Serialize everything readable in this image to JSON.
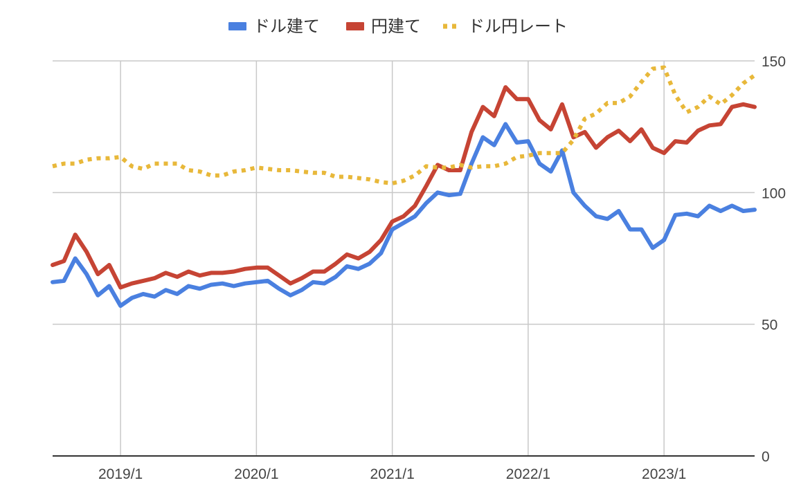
{
  "chart_data": {
    "type": "line",
    "title": "",
    "xlabel": "",
    "ylabel": "",
    "ylim": [
      0,
      150
    ],
    "y_axis_side": "right",
    "y_ticks": [
      "0",
      "50",
      "100",
      "150"
    ],
    "x_ticks": [
      {
        "label": "2019/1",
        "x": "2019-01"
      },
      {
        "label": "2020/1",
        "x": "2020-01"
      },
      {
        "label": "2021/1",
        "x": "2021-01"
      },
      {
        "label": "2022/1",
        "x": "2022-01"
      },
      {
        "label": "2023/1",
        "x": "2023-01"
      }
    ],
    "x_range": [
      "2018-07",
      "2023-09"
    ],
    "grid": true,
    "legend_position": "top",
    "x": [
      "2018-07",
      "2018-08",
      "2018-09",
      "2018-10",
      "2018-11",
      "2018-12",
      "2019-01",
      "2019-02",
      "2019-03",
      "2019-04",
      "2019-05",
      "2019-06",
      "2019-07",
      "2019-08",
      "2019-09",
      "2019-10",
      "2019-11",
      "2019-12",
      "2020-01",
      "2020-02",
      "2020-03",
      "2020-04",
      "2020-05",
      "2020-06",
      "2020-07",
      "2020-08",
      "2020-09",
      "2020-10",
      "2020-11",
      "2020-12",
      "2021-01",
      "2021-02",
      "2021-03",
      "2021-04",
      "2021-05",
      "2021-06",
      "2021-07",
      "2021-08",
      "2021-09",
      "2021-10",
      "2021-11",
      "2021-12",
      "2022-01",
      "2022-02",
      "2022-03",
      "2022-04",
      "2022-05",
      "2022-06",
      "2022-07",
      "2022-08",
      "2022-09",
      "2022-10",
      "2022-11",
      "2022-12",
      "2023-01",
      "2023-02",
      "2023-03",
      "2023-04",
      "2023-05",
      "2023-06",
      "2023-07",
      "2023-08",
      "2023-09"
    ],
    "series": [
      {
        "name": "ドル建て",
        "color": "#4a80e0",
        "style": "solid",
        "values": [
          66,
          66.5,
          75,
          69,
          61,
          64.5,
          57,
          60,
          61.5,
          60.5,
          63,
          61.5,
          64.5,
          63.5,
          65,
          65.5,
          64.5,
          65.5,
          66,
          66.5,
          63.5,
          61,
          63,
          66,
          65.5,
          68,
          72,
          71,
          73,
          77,
          86,
          88.5,
          91,
          96,
          100,
          99,
          99.5,
          111,
          121,
          118,
          126,
          119,
          119.5,
          111,
          108,
          116,
          100,
          95,
          91,
          90,
          93,
          86,
          86,
          79,
          82,
          91.5,
          92,
          91,
          95,
          93,
          95,
          93,
          93.5
        ]
      },
      {
        "name": "円建て",
        "color": "#c64434",
        "style": "solid",
        "values": [
          72.5,
          74,
          84,
          77.5,
          69,
          72.5,
          64,
          65.5,
          66.5,
          67.5,
          69.5,
          68,
          70,
          68.5,
          69.5,
          69.5,
          70,
          71,
          71.5,
          71.5,
          68.5,
          65.5,
          67.5,
          70,
          70,
          73,
          76.5,
          75,
          77.5,
          82,
          89,
          91,
          95,
          102.5,
          110.5,
          108.5,
          108.5,
          123,
          132.5,
          129,
          140,
          135.5,
          135.5,
          127.5,
          124,
          133.5,
          121,
          123,
          117,
          121,
          123.5,
          119.5,
          124,
          117,
          115,
          119.5,
          119,
          123.5,
          125.5,
          126,
          132.5,
          133.5,
          132.5
        ]
      },
      {
        "name": "ドル円レート",
        "color": "#e8b83a",
        "style": "dotted",
        "values": [
          110,
          111,
          111,
          112.5,
          113,
          113,
          113.5,
          110,
          109,
          111,
          111,
          111,
          108.5,
          108,
          106.5,
          106.5,
          108,
          108.5,
          109.5,
          109,
          108.5,
          108.5,
          108,
          107.5,
          107.5,
          106,
          106,
          105.5,
          105,
          104,
          103.5,
          104.5,
          106.5,
          110,
          109.5,
          109.5,
          110.5,
          109.5,
          110,
          110,
          111,
          113.5,
          114,
          115,
          115,
          115,
          120,
          128,
          130,
          134,
          134,
          136.5,
          142,
          147,
          147.5,
          137,
          130.5,
          132.5,
          136.5,
          133.5,
          137,
          141.5,
          144.5
        ]
      }
    ]
  }
}
